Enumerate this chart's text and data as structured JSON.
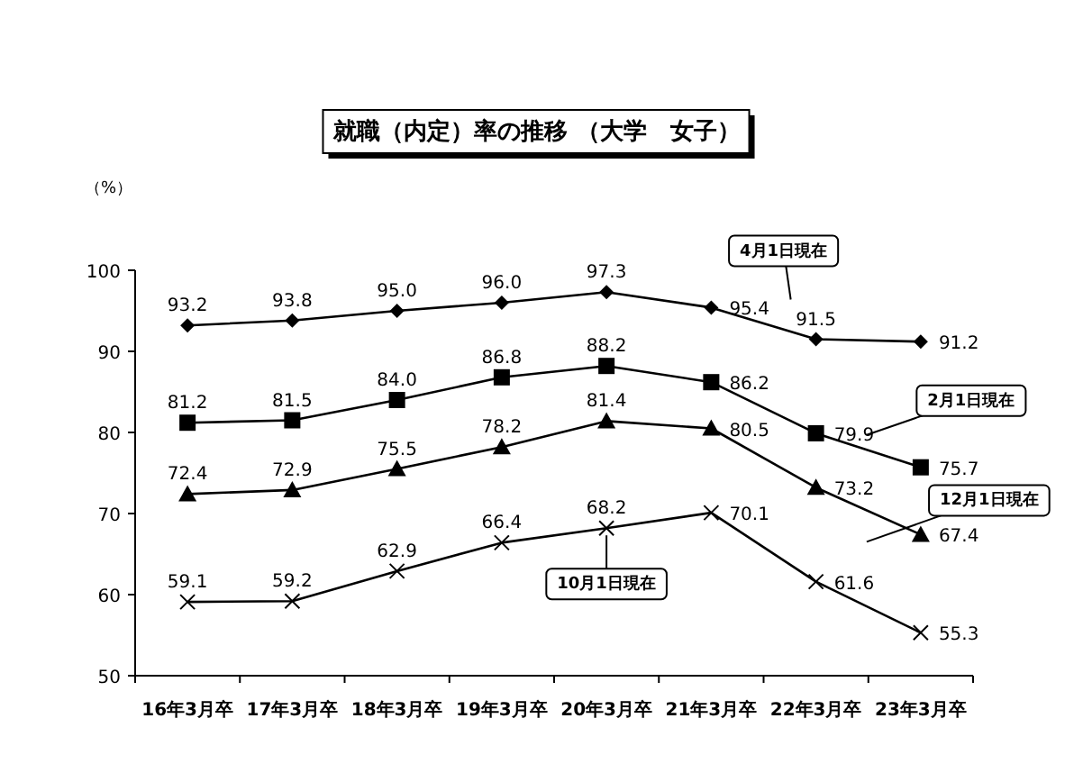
{
  "chart_data": {
    "type": "line",
    "title": "就職（内定）率の推移 （大学　女子）",
    "ylabel": "（%）",
    "categories": [
      "16年3月卒",
      "17年3月卒",
      "18年3月卒",
      "19年3月卒",
      "20年3月卒",
      "21年3月卒",
      "22年3月卒",
      "23年3月卒"
    ],
    "series": [
      {
        "name": "4月1日現在",
        "color": "#000000",
        "marker": "diamond",
        "values": [
          93.2,
          93.8,
          95.0,
          96.0,
          97.3,
          95.4,
          91.5,
          91.2
        ],
        "value_labels": [
          "93.2",
          "93.8",
          "95.0",
          "96.0",
          "97.3",
          "95.4",
          "91.5",
          "91.2"
        ]
      },
      {
        "name": "2月1日現在",
        "color": "#000000",
        "marker": "square",
        "values": [
          81.2,
          81.5,
          84.0,
          86.8,
          88.2,
          86.2,
          79.9,
          75.7
        ],
        "value_labels": [
          "81.2",
          "81.5",
          "84.0",
          "86.8",
          "88.2",
          "86.2",
          "79.9",
          "75.7"
        ]
      },
      {
        "name": "12月1日現在",
        "color": "#000000",
        "marker": "triangle",
        "values": [
          72.4,
          72.9,
          75.5,
          78.2,
          81.4,
          80.5,
          73.2,
          67.4
        ],
        "value_labels": [
          "72.4",
          "72.9",
          "75.5",
          "78.2",
          "81.4",
          "80.5",
          "73.2",
          "67.4"
        ]
      },
      {
        "name": "10月1日現在",
        "color": "#000000",
        "marker": "cross",
        "values": [
          59.1,
          59.2,
          62.9,
          66.4,
          68.2,
          70.1,
          61.6,
          55.3
        ],
        "value_labels": [
          "59.1",
          "59.2",
          "62.9",
          "66.4",
          "68.2",
          "70.1",
          "61.6",
          "55.3"
        ]
      }
    ],
    "ylim": [
      50,
      100
    ],
    "yticks": [
      50,
      60,
      70,
      80,
      90,
      100
    ],
    "grid": false
  }
}
